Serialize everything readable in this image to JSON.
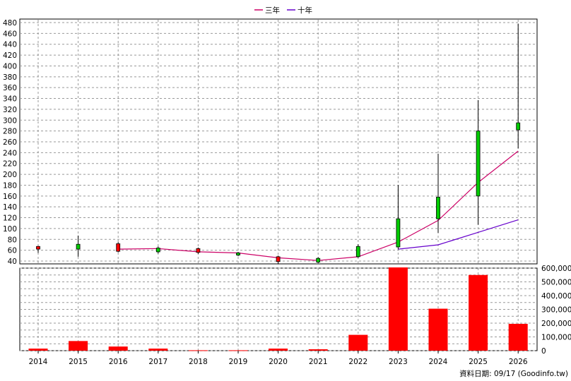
{
  "chart_data": {
    "type": "candlestick+line+bar",
    "legend": {
      "placement": "top-center",
      "entries": [
        {
          "name": "三年",
          "color": "#cc0066"
        },
        {
          "name": "十年",
          "color": "#6600cc"
        }
      ]
    },
    "categories": [
      "2014",
      "2015",
      "2016",
      "2017",
      "2018",
      "2019",
      "2020",
      "2021",
      "2022",
      "2023",
      "2024",
      "2025",
      "2026"
    ],
    "price_axis": {
      "min": 40,
      "max": 480,
      "ticks": [
        "480",
        "460",
        "440",
        "420",
        "400",
        "380",
        "360",
        "340",
        "320",
        "300",
        "280",
        "260",
        "240",
        "220",
        "200",
        "180",
        "160",
        "140",
        "120",
        "100",
        "80",
        "60",
        "40"
      ]
    },
    "volume_axis": {
      "min": 0,
      "max": 600000,
      "ticks": [
        "600,000",
        "500,000",
        "400,000",
        "300,000",
        "200,000",
        "100,000",
        "0"
      ]
    },
    "candles": [
      {
        "open": 62,
        "close": 67,
        "high": 68,
        "low": 55
      },
      {
        "open": 71,
        "close": 62,
        "high": 87,
        "low": 48
      },
      {
        "open": 58,
        "close": 72,
        "high": 75,
        "low": 56
      },
      {
        "open": 64,
        "close": 57,
        "high": 67,
        "low": 54
      },
      {
        "open": 56,
        "close": 63,
        "high": 65,
        "low": 53
      },
      {
        "open": 55,
        "close": 51,
        "high": 57,
        "low": 49
      },
      {
        "open": 39,
        "close": 48,
        "high": 50,
        "low": 34
      },
      {
        "open": 45,
        "close": 38,
        "high": 47,
        "low": 36
      },
      {
        "open": 67,
        "close": 48,
        "high": 71,
        "low": 46
      },
      {
        "open": 118,
        "close": 66,
        "high": 180,
        "low": 62
      },
      {
        "open": 158,
        "close": 118,
        "high": 238,
        "low": 92
      },
      {
        "open": 280,
        "close": 160,
        "high": 337,
        "low": 107
      },
      {
        "open": 295,
        "close": 282,
        "high": 478,
        "low": 248
      }
    ],
    "series": [
      {
        "name": "三年",
        "color": "#cc0066",
        "values": [
          null,
          null,
          62,
          63,
          57,
          55,
          46,
          41,
          48,
          75,
          115,
          185,
          243
        ]
      },
      {
        "name": "十年",
        "color": "#6600cc",
        "values": [
          null,
          null,
          null,
          null,
          null,
          null,
          null,
          null,
          null,
          62,
          70,
          93,
          116
        ]
      }
    ],
    "volume": [
      15000,
      70000,
      30000,
      15000,
      3000,
      3000,
      15000,
      10000,
      115000,
      605000,
      305000,
      550000,
      195000
    ],
    "colors": {
      "up": "#ff0000",
      "down": "#00cc00",
      "volume": "#ff0000",
      "wick": "#000000"
    },
    "grid": true
  },
  "footer": {
    "date_label": "資料日期: 09/17  (Goodinfo.tw)"
  }
}
